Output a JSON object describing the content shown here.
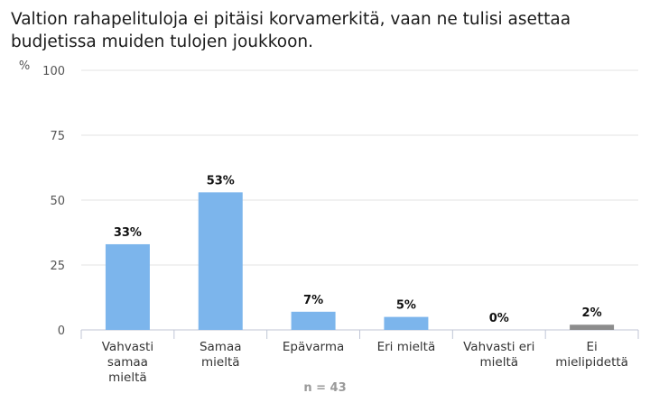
{
  "chart_data": {
    "type": "bar",
    "title": "Valtion rahapelituloja ei pitäisi korvamerkitä, vaan ne tulisi asettaa budjetissa muiden tulojen joukkoon.",
    "ylabel": "%",
    "ylim": [
      0,
      100
    ],
    "yticks": [
      "0",
      "25",
      "50",
      "75",
      "100"
    ],
    "grid": true,
    "categories": [
      [
        "Vahvasti",
        "samaa",
        "mieltä"
      ],
      [
        "Samaa",
        "mieltä"
      ],
      [
        "Epävarma"
      ],
      [
        "Eri mieltä"
      ],
      [
        "Vahvasti eri",
        "mieltä"
      ],
      [
        "Ei",
        "mielipidettä"
      ]
    ],
    "values": [
      33,
      53,
      7,
      5,
      0,
      2
    ],
    "value_labels": [
      "33%",
      "53%",
      "7%",
      "5%",
      "0%",
      "2%"
    ],
    "bar_colors": [
      "#7cb5ec",
      "#7cb5ec",
      "#7cb5ec",
      "#7cb5ec",
      "#7cb5ec",
      "#8c8c8c"
    ],
    "footnote": "n = 43"
  }
}
